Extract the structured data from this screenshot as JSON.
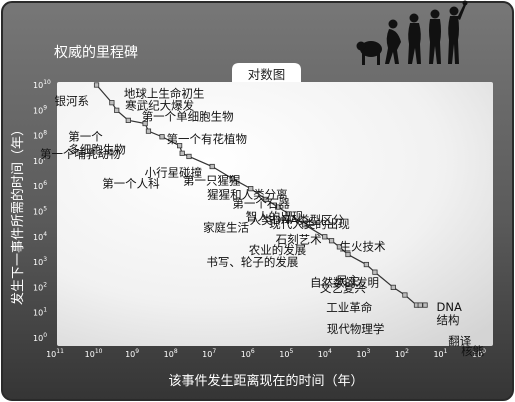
{
  "page": {
    "subtitle": "权威的里程碑",
    "tag": "对数图"
  },
  "chart_data": {
    "type": "scatter",
    "title": "对数图",
    "xlabel": "该事件发生距离现在的时间（年）",
    "ylabel": "发生下一事件所需的时间（年）",
    "x_scale": "log",
    "y_scale": "log",
    "x_reversed": true,
    "xlim": [
      100000000000,
      1
    ],
    "ylim": [
      1,
      10000000000
    ],
    "x_ticks": [
      {
        "value": 100000000000,
        "exp": "11"
      },
      {
        "value": 10000000000,
        "exp": "10"
      },
      {
        "value": 1000000000,
        "exp": "9"
      },
      {
        "value": 100000000,
        "exp": "8"
      },
      {
        "value": 10000000,
        "exp": "7"
      },
      {
        "value": 1000000,
        "exp": "6"
      },
      {
        "value": 100000,
        "exp": "5"
      },
      {
        "value": 10000,
        "exp": "4"
      },
      {
        "value": 1000,
        "exp": "3"
      },
      {
        "value": 100,
        "exp": "2"
      },
      {
        "value": 10,
        "exp": "1"
      },
      {
        "value": 1,
        "exp": "0"
      }
    ],
    "y_ticks": [
      {
        "value": 10000000000,
        "exp": "10"
      },
      {
        "value": 1000000000,
        "exp": "9"
      },
      {
        "value": 100000000,
        "exp": "8"
      },
      {
        "value": 10000000,
        "exp": "7"
      },
      {
        "value": 1000000,
        "exp": "6"
      },
      {
        "value": 100000,
        "exp": "5"
      },
      {
        "value": 10000,
        "exp": "4"
      },
      {
        "value": 1000,
        "exp": "3"
      },
      {
        "value": 100,
        "exp": "2"
      },
      {
        "value": 10,
        "exp": "1"
      },
      {
        "value": 1,
        "exp": "0"
      }
    ],
    "tick_base": "10",
    "grid": false,
    "points": [
      {
        "x": 10000000000,
        "y": 10000000000,
        "label": "银河系"
      },
      {
        "x": 4000000000,
        "y": 2000000000,
        "label": "地球上生命初生"
      },
      {
        "x": 3000000000,
        "y": 1000000000,
        "label": "第一个单细胞生物"
      },
      {
        "x": 1500000000,
        "y": 400000000,
        "label": "第一个多细胞生物"
      },
      {
        "x": 550000000,
        "y": 300000000,
        "label": "寒武纪大爆发"
      },
      {
        "x": 450000000,
        "y": 150000000,
        "label": "第一个有花植物"
      },
      {
        "x": 200000000,
        "y": 90000000,
        "label": "第一个哺乳动物"
      },
      {
        "x": 70000000,
        "y": 40000000,
        "label": "小行星碰撞"
      },
      {
        "x": 60000000,
        "y": 20000000,
        "label": "第一个人科"
      },
      {
        "x": 40000000,
        "y": 15000000,
        "label": "第一只猩猩"
      },
      {
        "x": 10000000,
        "y": 6000000,
        "label": "猩猩和人类分离"
      },
      {
        "x": 3000000,
        "y": 2000000,
        "label": "第一个石器"
      },
      {
        "x": 1000000,
        "y": 800000,
        "label": "智人的出现"
      },
      {
        "x": 400000,
        "y": 300000,
        "label": "家庭生活"
      },
      {
        "x": 200000,
        "y": 150000,
        "label": "人类DNA类型区分"
      },
      {
        "x": 100000,
        "y": 80000,
        "label": "现代人类的出现"
      },
      {
        "x": 40000,
        "y": 30000,
        "label": "石刻艺术"
      },
      {
        "x": 12000,
        "y": 10000,
        "label": "农业的发展"
      },
      {
        "x": 8000,
        "y": 7000,
        "label": "生火技术"
      },
      {
        "x": 5000,
        "y": 4000,
        "label": "书写、轮子的发展"
      },
      {
        "x": 3000,
        "y": 2000,
        "label": "自然数的发明"
      },
      {
        "x": 1000,
        "y": 800,
        "label": "民主"
      },
      {
        "x": 600,
        "y": 400,
        "label": "文艺复兴"
      },
      {
        "x": 200,
        "y": 100,
        "label": "工业革命"
      },
      {
        "x": 100,
        "y": 50,
        "label": "现代物理学"
      },
      {
        "x": 50,
        "y": 20,
        "label": "DNA结构"
      },
      {
        "x": 40,
        "y": 20,
        "label": "翻译"
      },
      {
        "x": 30,
        "y": 20,
        "label": "核能"
      }
    ]
  }
}
